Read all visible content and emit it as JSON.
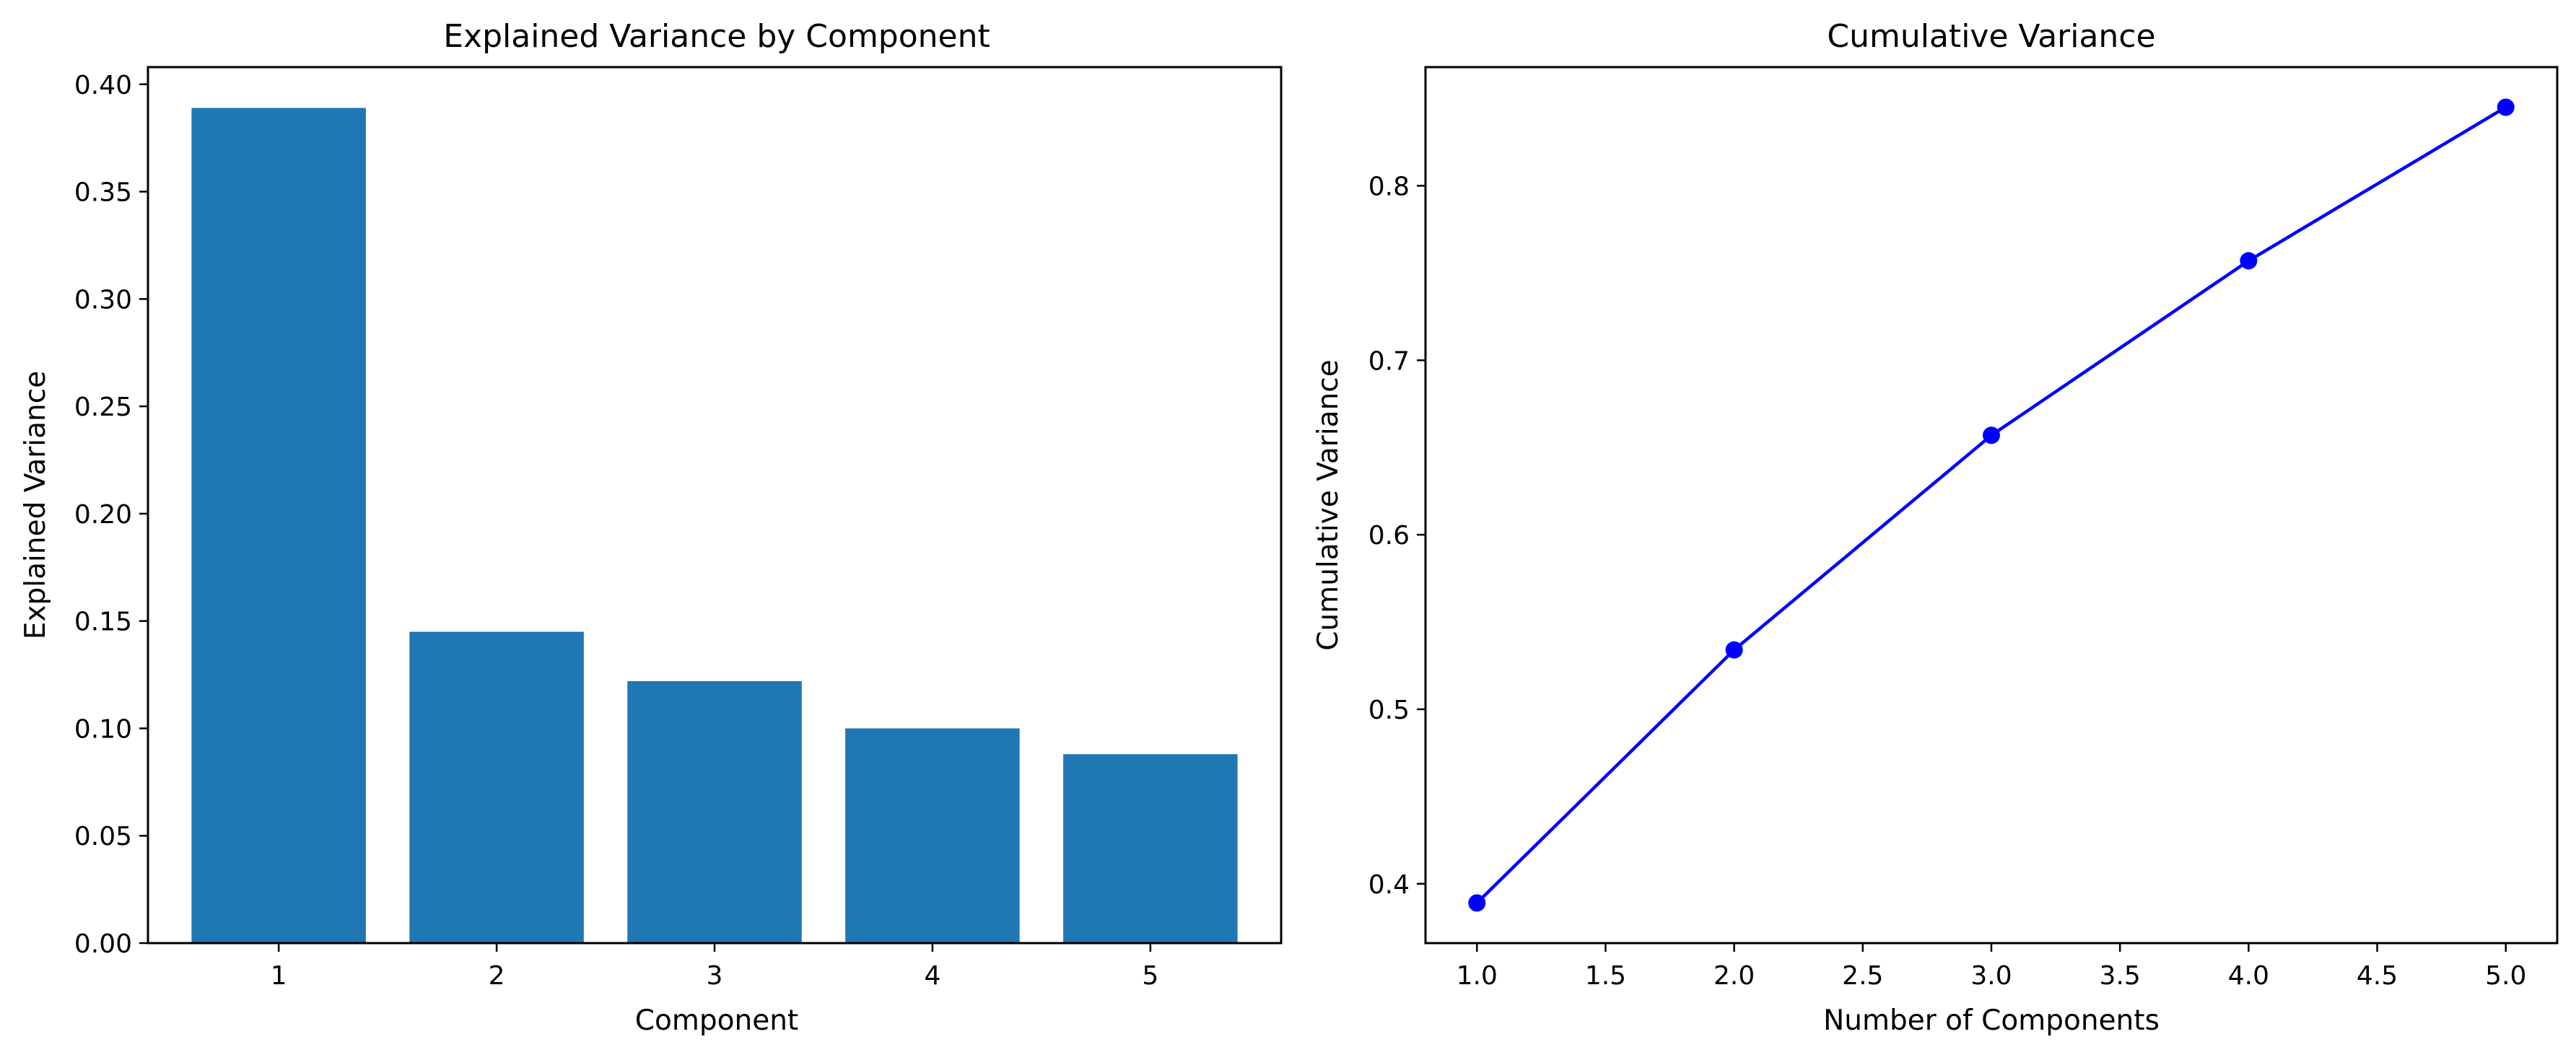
{
  "chart_data": [
    {
      "type": "bar",
      "title": "Explained Variance by Component",
      "xlabel": "Component",
      "ylabel": "Explained Variance",
      "categories": [
        "1",
        "2",
        "3",
        "4",
        "5"
      ],
      "values": [
        0.389,
        0.145,
        0.122,
        0.1,
        0.088
      ],
      "ylim": [
        0,
        0.408
      ],
      "yticks": [
        "0.00",
        "0.05",
        "0.10",
        "0.15",
        "0.20",
        "0.25",
        "0.30",
        "0.35",
        "0.40"
      ],
      "bar_color": "#1f77b4",
      "grid": false
    },
    {
      "type": "line",
      "title": "Cumulative Variance",
      "xlabel": "Number of Components",
      "ylabel": "Cumulative Variance",
      "x": [
        1,
        2,
        3,
        4,
        5
      ],
      "values": [
        0.389,
        0.534,
        0.657,
        0.757,
        0.845
      ],
      "xlim": [
        0.8,
        5.2
      ],
      "ylim": [
        0.366,
        0.868
      ],
      "xticks": [
        "1.0",
        "1.5",
        "2.0",
        "2.5",
        "3.0",
        "3.5",
        "4.0",
        "4.5",
        "5.0"
      ],
      "yticks": [
        "0.4",
        "0.5",
        "0.6",
        "0.7",
        "0.8"
      ],
      "line_color": "#0000ff",
      "marker": "circle",
      "grid": false
    }
  ]
}
